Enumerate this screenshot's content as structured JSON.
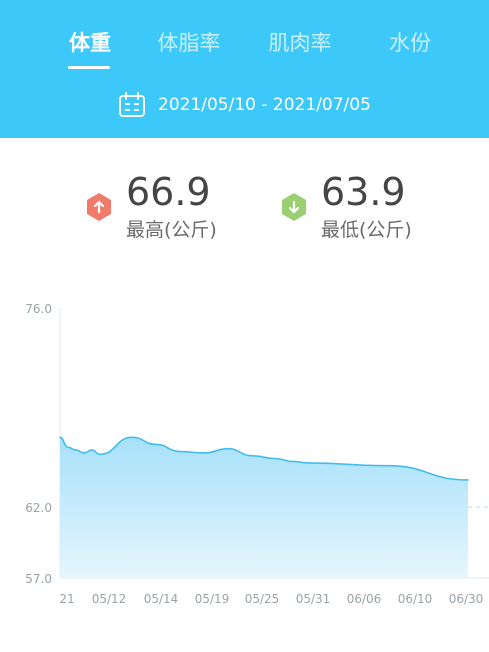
{
  "tabs": [
    {
      "label": "体重",
      "active": true
    },
    {
      "label": "体脂率",
      "active": false
    },
    {
      "label": "肌肉率",
      "active": false
    },
    {
      "label": "水份",
      "active": false
    }
  ],
  "date_range": "2021/05/10 - 2021/07/05",
  "stats": {
    "max": {
      "value": "66.9",
      "label": "最高(公斤)"
    },
    "min": {
      "value": "63.9",
      "label": "最低(公斤)"
    }
  },
  "colors": {
    "header": "#3cc8f8",
    "max_badge": "#f17b6a",
    "min_badge": "#9ccf72",
    "line": "#45bcef",
    "area_top": "#a7e1fa",
    "area_bottom": "#e6f6fd"
  },
  "icons": {
    "calendar": "calendar-icon",
    "max": "arrow-up-icon",
    "min": "arrow-down-icon"
  },
  "chart_data": {
    "type": "area",
    "title": "",
    "xlabel": "",
    "ylabel": "",
    "ylim": [
      57.0,
      76.0
    ],
    "y_ticks": [
      "76.0",
      "62.0",
      "57.0"
    ],
    "reference_line": 62.0,
    "x_ticks": [
      "21",
      "05/12",
      "05/14",
      "05/19",
      "05/25",
      "05/31",
      "06/06",
      "06/10",
      "06/30"
    ],
    "points": [
      {
        "x": "05/10",
        "y": 66.9
      },
      {
        "x": "05/11",
        "y": 66.2
      },
      {
        "x": "05/12",
        "y": 66.0
      },
      {
        "x": "05/13",
        "y": 65.8
      },
      {
        "x": "05/14",
        "y": 66.0
      },
      {
        "x": "05/15",
        "y": 65.7
      },
      {
        "x": "05/19",
        "y": 66.9
      },
      {
        "x": "05/22",
        "y": 66.4
      },
      {
        "x": "05/25",
        "y": 65.9
      },
      {
        "x": "05/28",
        "y": 65.8
      },
      {
        "x": "05/31",
        "y": 66.1
      },
      {
        "x": "06/03",
        "y": 65.6
      },
      {
        "x": "06/06",
        "y": 65.4
      },
      {
        "x": "06/08",
        "y": 65.2
      },
      {
        "x": "06/10",
        "y": 65.1
      },
      {
        "x": "06/20",
        "y": 64.9
      },
      {
        "x": "06/30",
        "y": 63.9
      }
    ]
  }
}
